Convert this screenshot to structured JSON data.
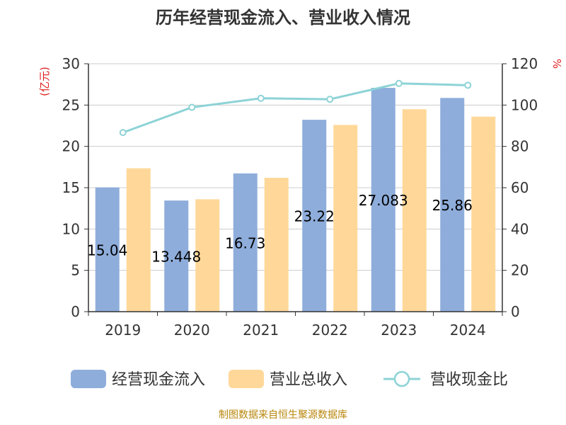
{
  "chart_data": {
    "type": "bar",
    "title": "历年经营现金流入、营业收入情况",
    "categories": [
      "2019",
      "2020",
      "2021",
      "2022",
      "2023",
      "2024"
    ],
    "series": [
      {
        "name": "经营现金流入",
        "axis": "left",
        "color": "#8EADDB",
        "values": [
          15.04,
          13.448,
          16.73,
          23.22,
          27.083,
          25.86
        ],
        "labels": [
          "15.04",
          "13.448",
          "16.73",
          "23.22",
          "27.083",
          "25.86"
        ]
      },
      {
        "name": "营业总收入",
        "axis": "left",
        "color": "#FFD899",
        "values": [
          17.35,
          13.6,
          16.2,
          22.6,
          24.5,
          23.6
        ]
      },
      {
        "name": "营收现金比",
        "axis": "right",
        "type": "line",
        "color": "#8DD3D6",
        "values": [
          86.7,
          98.9,
          103.3,
          102.8,
          110.5,
          109.6
        ]
      }
    ],
    "ylabel_left": "(亿元)",
    "ylabel_right": "%",
    "ylim_left": [
      0,
      30
    ],
    "ylim_right": [
      0,
      120
    ],
    "left_ticks": [
      "0",
      "5",
      "10",
      "15",
      "20",
      "25",
      "30"
    ],
    "right_ticks": [
      "0",
      "20",
      "40",
      "60",
      "80",
      "100",
      "120"
    ],
    "grid": true,
    "legend_position": "bottom",
    "source": "制图数据来自恒生聚源数据库"
  }
}
